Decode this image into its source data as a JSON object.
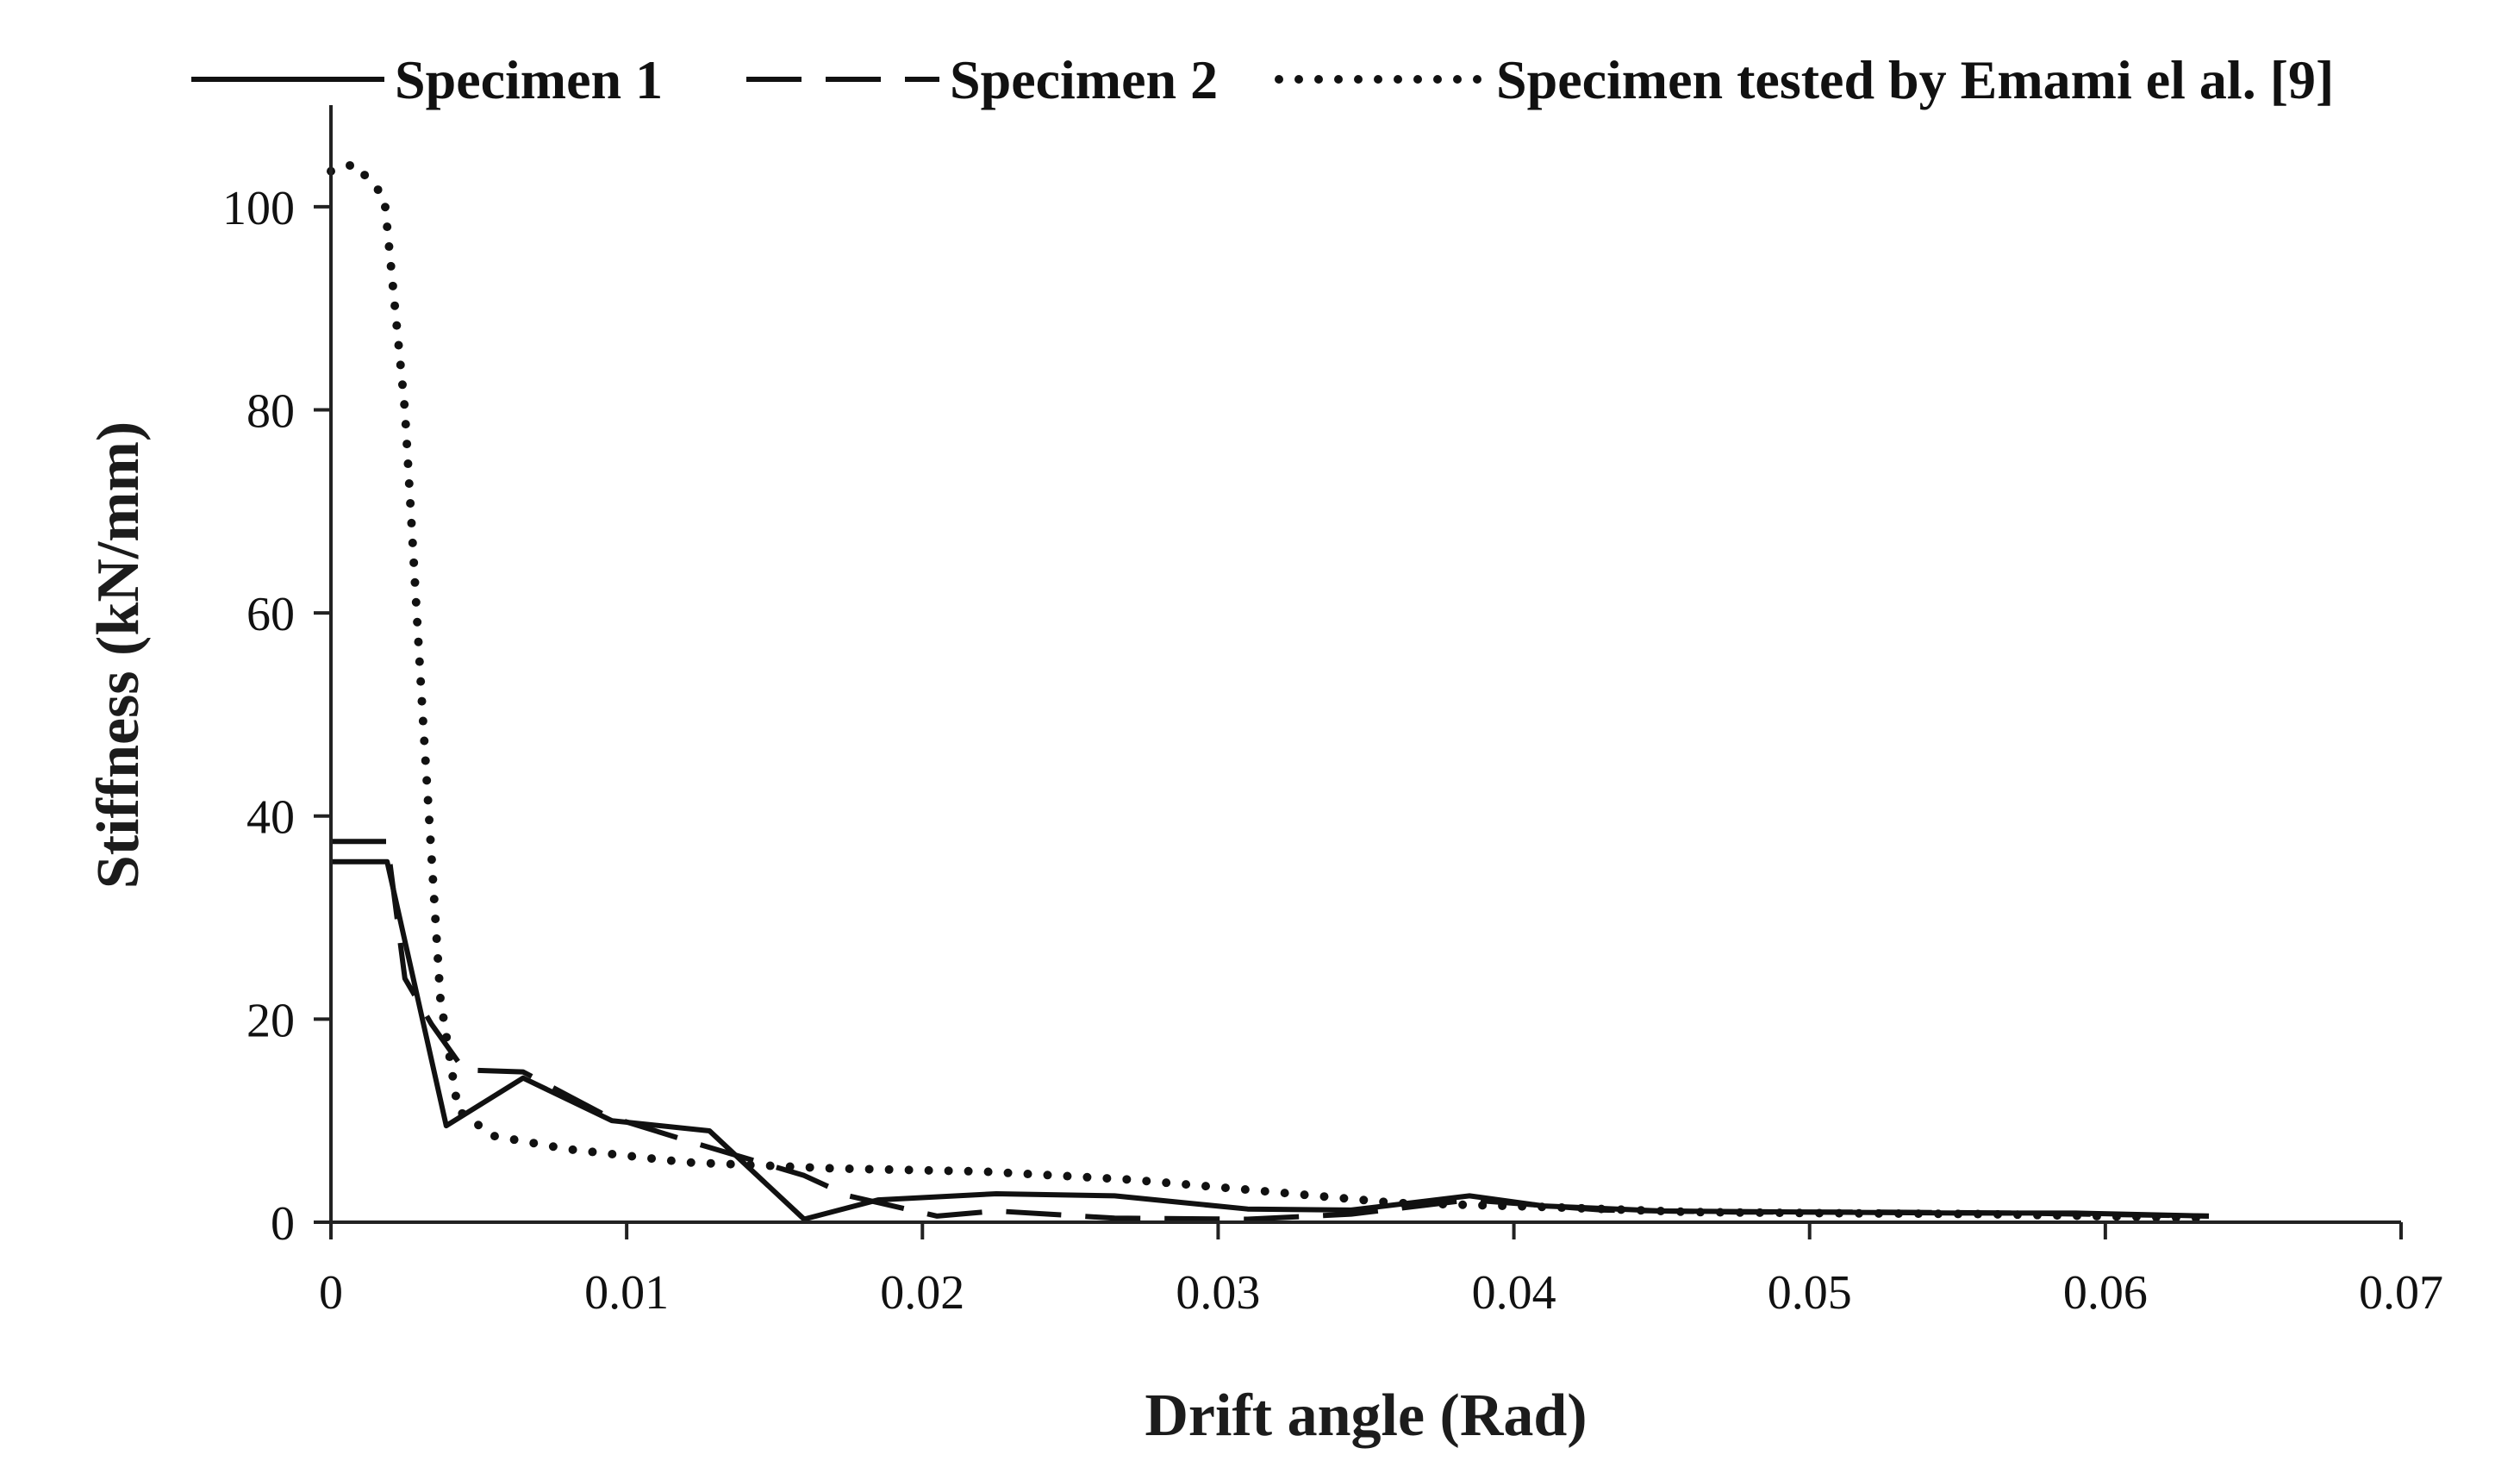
{
  "chart_data": {
    "type": "line",
    "title": "",
    "xlabel": "Drift angle (Rad)",
    "ylabel": "Stiffness (kN/mm)",
    "xlim": [
      0,
      0.07
    ],
    "ylim": [
      0,
      110
    ],
    "x_ticks": [
      0,
      0.01,
      0.02,
      0.03,
      0.04,
      0.05,
      0.06,
      0.07
    ],
    "x_tick_labels": [
      "0",
      "0.01",
      "0.02",
      "0.03",
      "0.04",
      "0.05",
      "0.06",
      "0.07"
    ],
    "y_ticks": [
      0,
      20,
      40,
      60,
      80,
      100
    ],
    "y_tick_labels": [
      "0",
      "20",
      "40",
      "60",
      "80",
      "100"
    ],
    "grid": false,
    "legend_position": "top",
    "series": [
      {
        "name": "Specimen 1",
        "style": "solid",
        "points": [
          [
            0,
            35.5
          ],
          [
            0.0019,
            35.5
          ],
          [
            0.0039,
            9.5
          ],
          [
            0.0065,
            14.2
          ],
          [
            0.0095,
            10.0
          ],
          [
            0.0128,
            9.0
          ],
          [
            0.016,
            0.3
          ],
          [
            0.0185,
            2.2
          ],
          [
            0.0225,
            2.8
          ],
          [
            0.0265,
            2.6
          ],
          [
            0.031,
            1.3
          ],
          [
            0.0345,
            1.2
          ],
          [
            0.0385,
            2.6
          ],
          [
            0.041,
            1.6
          ],
          [
            0.045,
            1.1
          ],
          [
            0.05,
            1.0
          ],
          [
            0.055,
            0.9
          ],
          [
            0.059,
            0.9
          ],
          [
            0.0635,
            0.6
          ]
        ]
      },
      {
        "name": "Specimen 2",
        "style": "dashed",
        "points": [
          [
            0,
            37.5
          ],
          [
            0.0019,
            37.5
          ],
          [
            0.0025,
            24
          ],
          [
            0.0034,
            19.5
          ],
          [
            0.0045,
            15
          ],
          [
            0.0065,
            14.8
          ],
          [
            0.0093,
            10.5
          ],
          [
            0.0123,
            7.8
          ],
          [
            0.016,
            4.6
          ],
          [
            0.0175,
            2.6
          ],
          [
            0.0205,
            0.6
          ],
          [
            0.0225,
            1.1
          ],
          [
            0.0265,
            0.4
          ],
          [
            0.031,
            0.3
          ],
          [
            0.0345,
            0.8
          ],
          [
            0.0385,
            2.2
          ],
          [
            0.043,
            1.2
          ],
          [
            0.0475,
            1.0
          ],
          [
            0.052,
            1.0
          ],
          [
            0.057,
            0.9
          ],
          [
            0.0635,
            0.6
          ]
        ]
      },
      {
        "name": "Specimen tested by Emami el al. [9]",
        "style": "dotted",
        "points": [
          [
            0,
            103.5
          ],
          [
            0.0008,
            104.2
          ],
          [
            0.0018,
            101
          ],
          [
            0.0025,
            80
          ],
          [
            0.0031,
            50
          ],
          [
            0.0037,
            22
          ],
          [
            0.0043,
            11
          ],
          [
            0.0055,
            8.5
          ],
          [
            0.008,
            7.2
          ],
          [
            0.012,
            5.9
          ],
          [
            0.017,
            5.3
          ],
          [
            0.022,
            5.0
          ],
          [
            0.027,
            4.2
          ],
          [
            0.031,
            3.2
          ],
          [
            0.036,
            1.9
          ],
          [
            0.041,
            1.5
          ],
          [
            0.046,
            1.0
          ],
          [
            0.05,
            0.9
          ],
          [
            0.056,
            0.8
          ],
          [
            0.0635,
            0.4
          ]
        ]
      }
    ]
  }
}
